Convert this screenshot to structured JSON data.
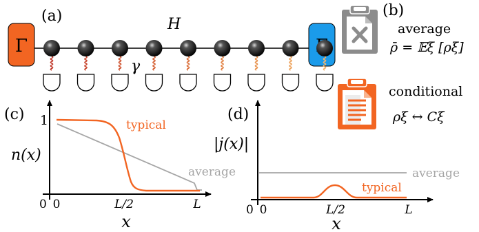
{
  "panel_a": {
    "label": "(a)",
    "hamiltonian": "H",
    "coupling": "γ",
    "bath_left": "Γ",
    "bath_right": "Γ",
    "sites": 9,
    "bath_left_color": "#f26522",
    "bath_right_color": "#1b9bea"
  },
  "panel_b": {
    "label": "(b)",
    "average_label": "average",
    "average_formula": "ρ̄ = 𝔼ξ [ρξ]",
    "conditional_label": "conditional",
    "conditional_formula": "ρξ ↔ Cξ",
    "average_icon": "crossed-clipboard-icon",
    "conditional_icon": "document-clipboard-icon",
    "average_icon_color": "#888888",
    "conditional_icon_color": "#f26522"
  },
  "panel_c": {
    "label": "(c)",
    "ylabel": "n(x)",
    "xlabel": "x",
    "y_tick_top": "1",
    "x_ticks": [
      "0",
      "L/2",
      "L"
    ],
    "origin_label": "0",
    "typical_label": "typical",
    "average_label": "average"
  },
  "panel_d": {
    "label": "(d)",
    "ylabel": "|j(x)|",
    "xlabel": "x",
    "x_ticks": [
      "0",
      "L/2",
      "L"
    ],
    "origin_label": "0",
    "typical_label": "typical",
    "average_label": "average"
  },
  "colors": {
    "typical": "#f26522",
    "average": "#a6a6a6",
    "axis": "#000000"
  }
}
